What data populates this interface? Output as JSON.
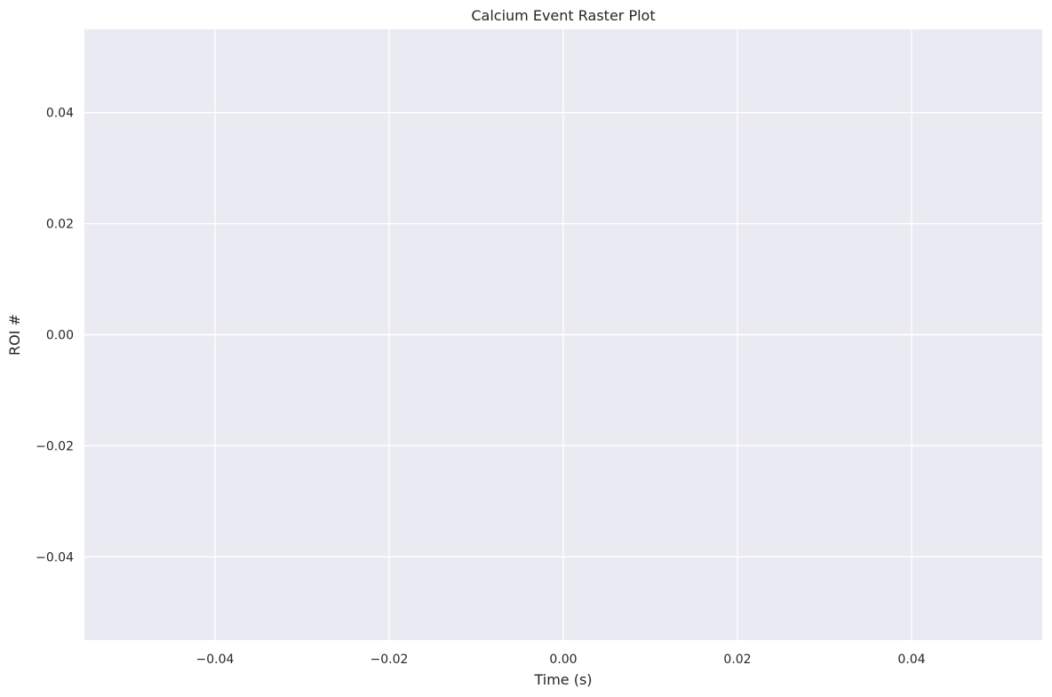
{
  "chart_data": {
    "type": "scatter",
    "title": "Calcium Event Raster Plot",
    "xlabel": "Time (s)",
    "ylabel": "ROI #",
    "xlim": [
      -0.055,
      0.055
    ],
    "ylim": [
      -0.055,
      0.055
    ],
    "x_ticks": [
      -0.04,
      -0.02,
      0.0,
      0.02,
      0.04
    ],
    "x_tick_labels": [
      "−0.04",
      "−0.02",
      "0.00",
      "0.02",
      "0.04"
    ],
    "y_ticks": [
      -0.04,
      -0.02,
      0.0,
      0.02,
      0.04
    ],
    "y_tick_labels": [
      "−0.04",
      "−0.02",
      "0.00",
      "0.02",
      "0.04"
    ],
    "grid": true,
    "series": [],
    "colors": {
      "plot_background": "#eaeaf2",
      "grid": "#ffffff",
      "text": "#262626"
    }
  }
}
